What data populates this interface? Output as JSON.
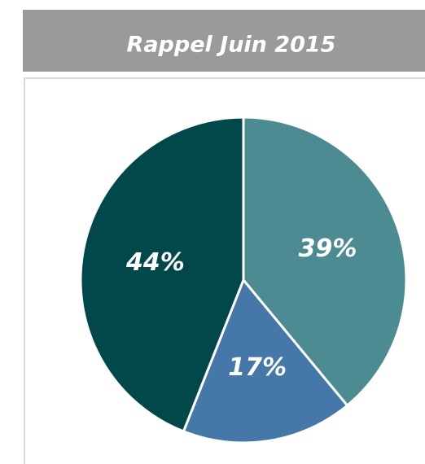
{
  "chart_data": {
    "type": "pie",
    "title": "Rappel Juin 2015",
    "values": [
      39,
      17,
      44
    ],
    "value_labels": [
      "39%",
      "17%",
      "44%"
    ],
    "colors": [
      "#4d8b93",
      "#4577a8",
      "#02484b"
    ]
  }
}
